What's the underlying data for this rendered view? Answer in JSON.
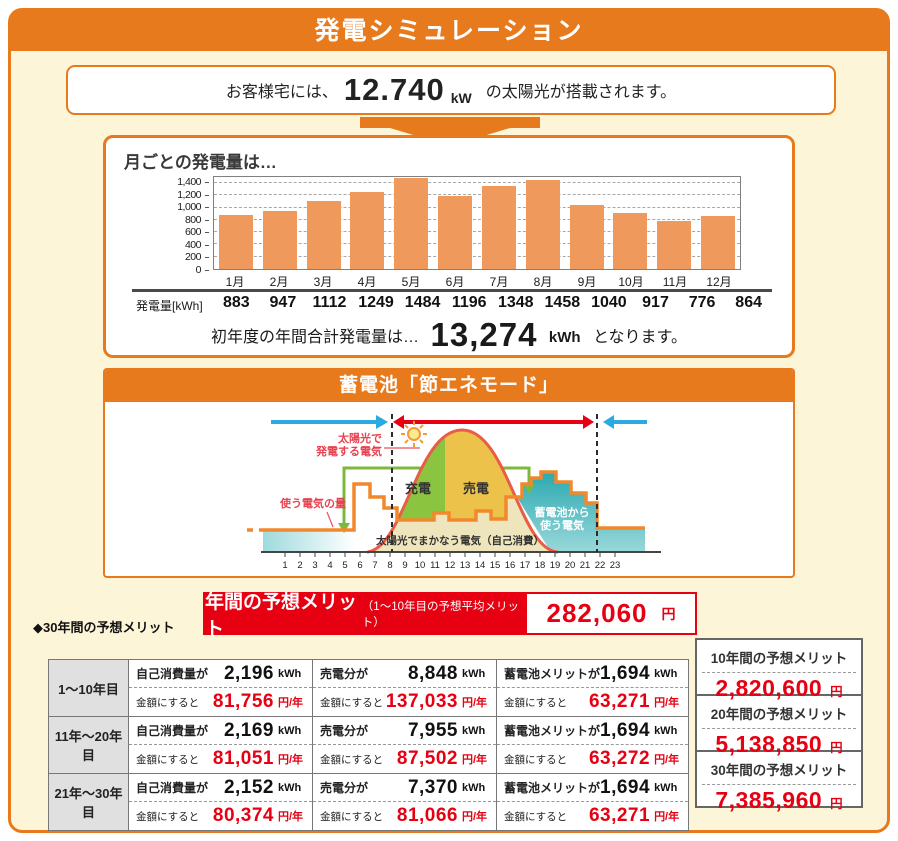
{
  "page": {
    "title": "発電シミュレーション"
  },
  "intro": {
    "prefix": "お客様宅には、",
    "capacity_value": "12.740",
    "capacity_unit": "kW",
    "suffix": "の太陽光が搭載されます。"
  },
  "monthly": {
    "heading": "月ごとの発電量は…",
    "row_label": "発電量[kWh]",
    "annual_prefix": "初年度の年間合計発電量は…",
    "annual_value": "13,274",
    "annual_unit": "kWh",
    "annual_suffix": "となります。"
  },
  "chart_data": {
    "type": "bar",
    "categories": [
      "1月",
      "2月",
      "3月",
      "4月",
      "5月",
      "6月",
      "7月",
      "8月",
      "9月",
      "10月",
      "11月",
      "12月"
    ],
    "values": [
      883,
      947,
      1112,
      1249,
      1484,
      1196,
      1348,
      1458,
      1040,
      917,
      776,
      864
    ],
    "title": "月ごとの発電量は…",
    "xlabel": "",
    "ylabel": "発電量[kWh]",
    "ylim": [
      0,
      1500
    ],
    "yticks": [
      0,
      200,
      400,
      600,
      800,
      1000,
      1200,
      1400
    ],
    "grid": "dashed-horizontal",
    "bar_color": "#f0995c",
    "annual_total_kwh": 13274
  },
  "battery": {
    "heading": "蓄電池「節エネモード」",
    "labels": {
      "solar_line1": "太陽光で",
      "solar_line2": "発電する電気",
      "usage": "使う電気の量",
      "charge": "充電",
      "sell": "売電",
      "self_consume": "太陽光でまかなう電気（自己消費）",
      "battery_line1": "蓄電池から",
      "battery_line2": "使う電気"
    },
    "hours": [
      1,
      2,
      3,
      4,
      5,
      6,
      7,
      8,
      9,
      10,
      11,
      12,
      13,
      14,
      15,
      16,
      17,
      18,
      19,
      20,
      21,
      22,
      23
    ]
  },
  "annual_merit": {
    "label": "年間の予想メリット",
    "sublabel": "（1～10年目の予想平均メリット）",
    "value": "282,060",
    "unit": "円"
  },
  "merit_table": {
    "heading": "◆30年間の予想メリット",
    "money_label": "金額にすると",
    "rows": [
      {
        "period": "1～10年目",
        "cells": [
          {
            "label": "自己消費量が",
            "kwh": "2,196",
            "kwh_unit": "kWh",
            "yen": "81,756",
            "yen_unit": "円/年"
          },
          {
            "label": "売電分が",
            "kwh": "8,848",
            "kwh_unit": "kWh",
            "yen": "137,033",
            "yen_unit": "円/年"
          },
          {
            "label": "蓄電池メリットが",
            "kwh": "1,694",
            "kwh_unit": "kWh",
            "yen": "63,271",
            "yen_unit": "円/年"
          }
        ]
      },
      {
        "period": "11年～20年目",
        "cells": [
          {
            "label": "自己消費量が",
            "kwh": "2,169",
            "kwh_unit": "kWh",
            "yen": "81,051",
            "yen_unit": "円/年"
          },
          {
            "label": "売電分が",
            "kwh": "7,955",
            "kwh_unit": "kWh",
            "yen": "87,502",
            "yen_unit": "円/年"
          },
          {
            "label": "蓄電池メリットが",
            "kwh": "1,694",
            "kwh_unit": "kWh",
            "yen": "63,272",
            "yen_unit": "円/年"
          }
        ]
      },
      {
        "period": "21年～30年目",
        "cells": [
          {
            "label": "自己消費量が",
            "kwh": "2,152",
            "kwh_unit": "kWh",
            "yen": "80,374",
            "yen_unit": "円/年"
          },
          {
            "label": "売電分が",
            "kwh": "7,370",
            "kwh_unit": "kWh",
            "yen": "81,066",
            "yen_unit": "円/年"
          },
          {
            "label": "蓄電池メリットが",
            "kwh": "1,694",
            "kwh_unit": "kWh",
            "yen": "63,271",
            "yen_unit": "円/年"
          }
        ]
      }
    ]
  },
  "summary_boxes": [
    {
      "label": "10年間の予想メリット",
      "value": "2,820,600",
      "unit": "円"
    },
    {
      "label": "20年間の予想メリット",
      "value": "5,138,850",
      "unit": "円"
    },
    {
      "label": "30年間の予想メリット",
      "value": "7,385,960",
      "unit": "円"
    }
  ],
  "colors": {
    "accent_orange": "#e87a1e",
    "red": "#e60012",
    "bar_orange": "#f0995c",
    "cream_background": "#fdf5d8",
    "curve_red": "#e95c45",
    "charge_green": "#8bc540",
    "sell_yellow": "#ecc24b",
    "battery_teal": "#2aa9b0",
    "self_consume_beige": "#efe5bd",
    "usage_line_orange": "#f2882c",
    "arrow_blue": "#2aaae1"
  }
}
